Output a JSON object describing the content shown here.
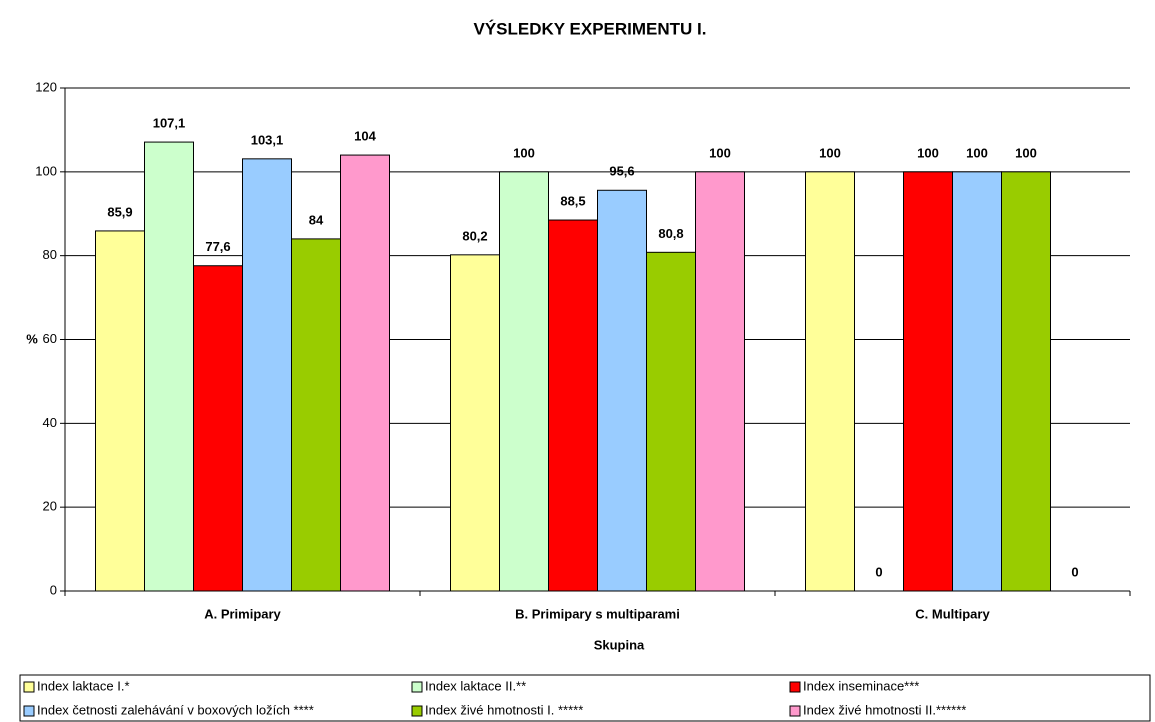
{
  "chart_data": {
    "type": "bar",
    "title": "VÝSLEDKY EXPERIMENTU I.",
    "x_label": "Skupina",
    "y_label": "%",
    "categories": [
      "A. Primipary",
      "B. Primipary s multiparami",
      "C. Multipary"
    ],
    "series": [
      {
        "name": "Index laktace I.*",
        "color": "#ffff99",
        "values": [
          85.9,
          80.2,
          100
        ],
        "value_labels": [
          "85,9",
          "80,2",
          "100"
        ]
      },
      {
        "name": "Index laktace II.**",
        "color": "#ccffcc",
        "values": [
          107.1,
          100,
          0
        ],
        "value_labels": [
          "107,1",
          "100",
          "0"
        ]
      },
      {
        "name": "Index inseminace***",
        "color": "#ff0000",
        "values": [
          77.6,
          88.5,
          100
        ],
        "value_labels": [
          "77,6",
          "88,5",
          "100"
        ]
      },
      {
        "name": "Index četnosti zalehávání v boxových ložích ****",
        "color": "#99ccff",
        "values": [
          103.1,
          95.6,
          100
        ],
        "value_labels": [
          "103,1",
          "95,6",
          "100"
        ]
      },
      {
        "name": "Index živé hmotnosti I. *****",
        "color": "#99cc00",
        "values": [
          84,
          80.8,
          100
        ],
        "value_labels": [
          "84",
          "80,8",
          "100"
        ]
      },
      {
        "name": "Index živé hmotnosti II.******",
        "color": "#ff99cc",
        "values": [
          104,
          100,
          0
        ],
        "value_labels": [
          "104",
          "100",
          "0"
        ]
      }
    ],
    "ylim": [
      0,
      120
    ],
    "yticks": [
      0,
      20,
      40,
      60,
      80,
      100,
      120
    ],
    "grid": true,
    "legend": "bottom"
  }
}
